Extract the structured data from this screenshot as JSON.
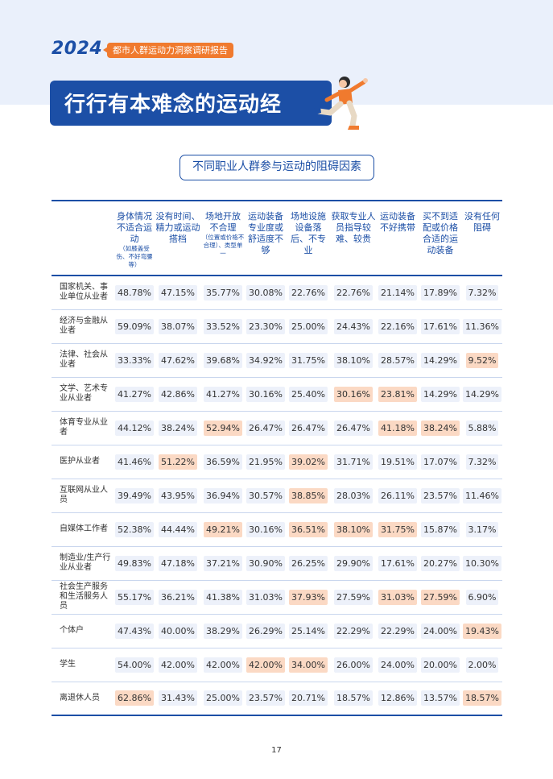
{
  "header": {
    "year": "2024",
    "report_name": "都市人群运动力洞察调研报告",
    "title": "行行有本难念的运动经"
  },
  "table": {
    "caption": "不同职业人群参与运动的阻碍因素",
    "columns": [
      {
        "label": "",
        "note": ""
      },
      {
        "label": "身体情况不适合运动",
        "note": "（如膝盖受伤、不好弯腰等）"
      },
      {
        "label": "没有时间、精力或运动搭档",
        "note": ""
      },
      {
        "label": "场地开放不合理",
        "note": "（位置或价格不合理）、类型单一"
      },
      {
        "label": "运动装备专业度或舒适度不够",
        "note": ""
      },
      {
        "label": "场地设施设备落后、不专业",
        "note": ""
      },
      {
        "label": "获取专业人员指导较难、较贵",
        "note": ""
      },
      {
        "label": "运动装备不好携带",
        "note": ""
      },
      {
        "label": "买不到适配或价格合适的运动装备",
        "note": ""
      },
      {
        "label": "没有任何阻碍",
        "note": ""
      }
    ],
    "rows": [
      {
        "name": "国家机关、事业单位从业者",
        "values": [
          "48.78%",
          "47.15%",
          "35.77%",
          "30.08%",
          "22.76%",
          "22.76%",
          "21.14%",
          "17.89%",
          "7.32%"
        ],
        "highlight": []
      },
      {
        "name": "经济与金融从业者",
        "values": [
          "59.09%",
          "38.07%",
          "33.52%",
          "23.30%",
          "25.00%",
          "24.43%",
          "22.16%",
          "17.61%",
          "11.36%"
        ],
        "highlight": []
      },
      {
        "name": "法律、社会从业者",
        "values": [
          "33.33%",
          "47.62%",
          "39.68%",
          "34.92%",
          "31.75%",
          "38.10%",
          "28.57%",
          "14.29%",
          "9.52%"
        ],
        "highlight": [
          8
        ]
      },
      {
        "name": "文学、艺术专业从业者",
        "values": [
          "41.27%",
          "42.86%",
          "41.27%",
          "30.16%",
          "25.40%",
          "30.16%",
          "23.81%",
          "14.29%",
          "14.29%"
        ],
        "highlight": [
          5,
          6
        ]
      },
      {
        "name": "体育专业从业者",
        "values": [
          "44.12%",
          "38.24%",
          "52.94%",
          "26.47%",
          "26.47%",
          "26.47%",
          "41.18%",
          "38.24%",
          "5.88%"
        ],
        "highlight": [
          2,
          6,
          7
        ]
      },
      {
        "name": "医护从业者",
        "values": [
          "41.46%",
          "51.22%",
          "36.59%",
          "21.95%",
          "39.02%",
          "31.71%",
          "19.51%",
          "17.07%",
          "7.32%"
        ],
        "highlight": [
          1,
          4
        ]
      },
      {
        "name": "互联网从业人员",
        "values": [
          "39.49%",
          "43.95%",
          "36.94%",
          "30.57%",
          "38.85%",
          "28.03%",
          "26.11%",
          "23.57%",
          "11.46%"
        ],
        "highlight": [
          4
        ]
      },
      {
        "name": "自媒体工作者",
        "values": [
          "52.38%",
          "44.44%",
          "49.21%",
          "30.16%",
          "36.51%",
          "38.10%",
          "31.75%",
          "15.87%",
          "3.17%"
        ],
        "highlight": [
          2,
          4,
          5,
          6
        ]
      },
      {
        "name": "制造业/生产行业从业者",
        "values": [
          "49.83%",
          "47.18%",
          "37.21%",
          "30.90%",
          "26.25%",
          "29.90%",
          "17.61%",
          "20.27%",
          "10.30%"
        ],
        "highlight": []
      },
      {
        "name": "社会生产服务和生活服务人员",
        "values": [
          "55.17%",
          "36.21%",
          "41.38%",
          "31.03%",
          "37.93%",
          "27.59%",
          "31.03%",
          "27.59%",
          "6.90%"
        ],
        "highlight": [
          4,
          6,
          7
        ]
      },
      {
        "name": "个体户",
        "values": [
          "47.43%",
          "40.00%",
          "38.29%",
          "26.29%",
          "25.14%",
          "22.29%",
          "22.29%",
          "24.00%",
          "19.43%"
        ],
        "highlight": [
          8
        ]
      },
      {
        "name": "学生",
        "values": [
          "54.00%",
          "42.00%",
          "42.00%",
          "42.00%",
          "34.00%",
          "26.00%",
          "24.00%",
          "20.00%",
          "2.00%"
        ],
        "highlight": [
          3,
          4
        ]
      },
      {
        "name": "离退休人员",
        "values": [
          "62.86%",
          "31.43%",
          "25.00%",
          "23.57%",
          "20.71%",
          "18.57%",
          "12.86%",
          "13.57%",
          "18.57%"
        ],
        "highlight": [
          0,
          8
        ]
      }
    ]
  },
  "page_number": "17",
  "colors": {
    "primary": "#1c4fa6",
    "accent": "#f07a2e",
    "cell_bg": "#edf1fa",
    "cell_highlight": "#fbd9c4"
  }
}
